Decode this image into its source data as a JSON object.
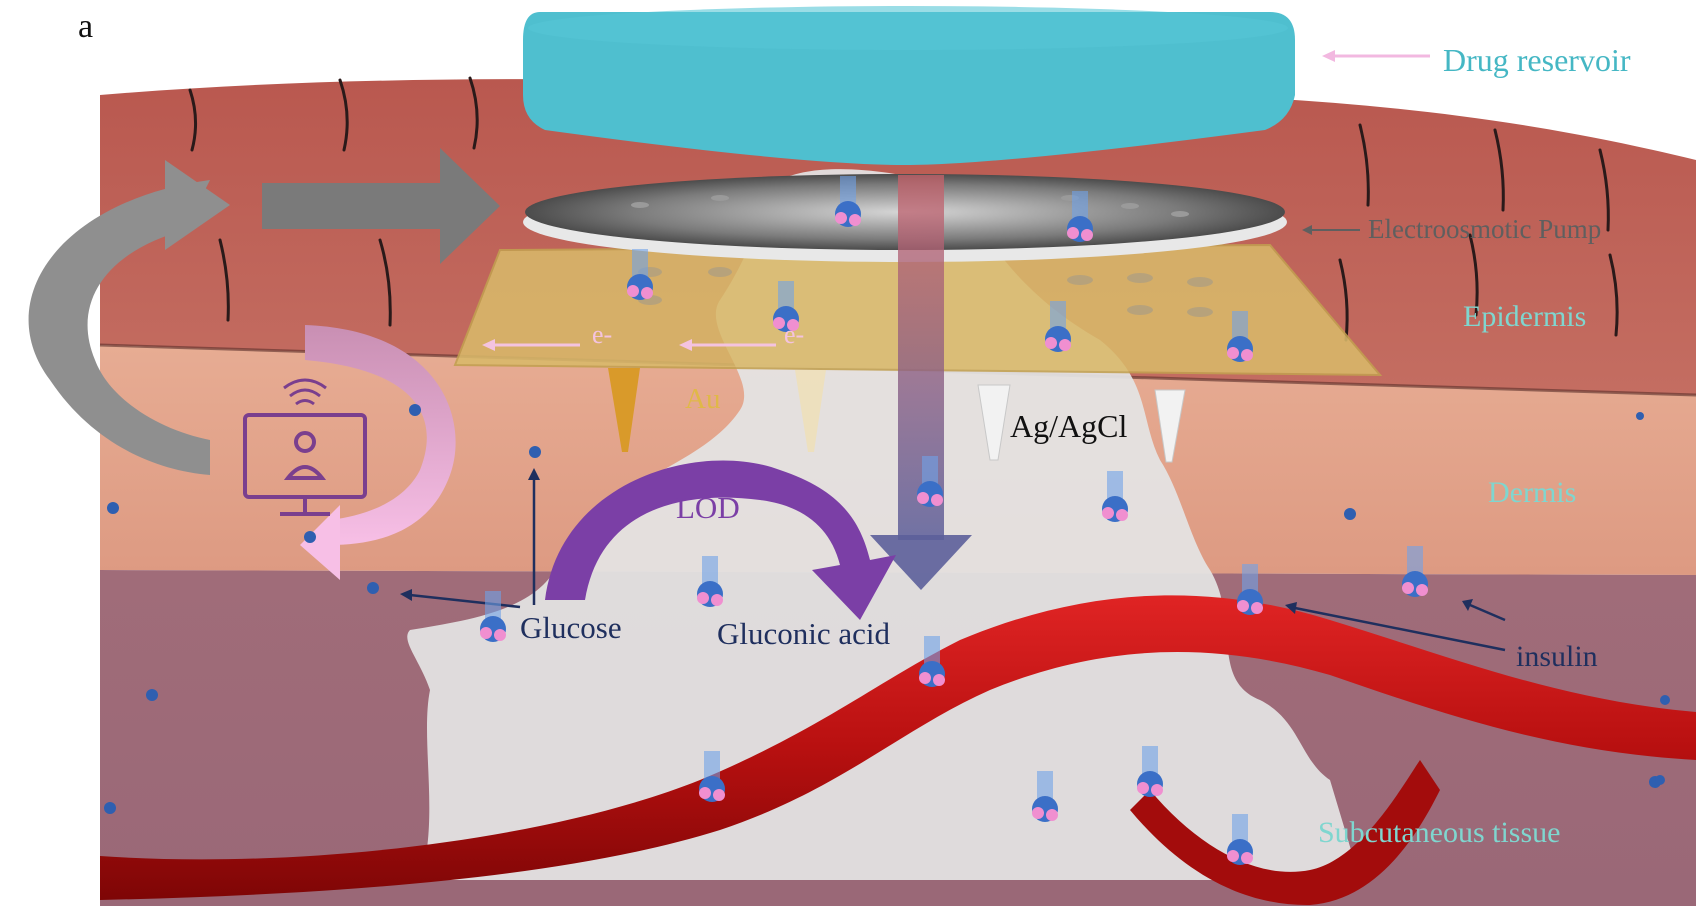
{
  "panel_label": "a",
  "labels": {
    "drug_reservoir": "Drug reservoir",
    "electroosmotic_pump": "Electroosmotic Pump",
    "epidermis": "Epidermis",
    "dermis": "Dermis",
    "subcutaneous": "Subcutaneous tissue",
    "au": "Au",
    "ag_agcl": "Ag/AgCl",
    "lod": "LOD",
    "glucose": "Glucose",
    "gluconic_acid": "Gluconic acid",
    "insulin": "insulin",
    "electron": "e-"
  },
  "colors": {
    "reservoir": "#4fbfcf",
    "epidermis": "#c0685e",
    "dermis": "#e3a48d",
    "subcutaneous": "#9e6a78",
    "gold_electrode": "#e2c06c",
    "enzyme_arrow": "#7b3fa6",
    "vessel": "#c41515",
    "feedback_arrow": "#8f8f8f",
    "pink_arrow": "#f2b8e0"
  },
  "icons": [
    "monitor-user-icon",
    "insulin-molecule-icon",
    "wifi-icon"
  ]
}
